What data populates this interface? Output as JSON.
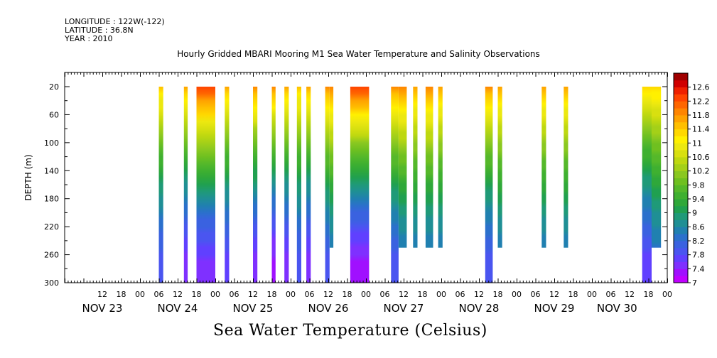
{
  "header": {
    "longitude": "LONGITUDE : 122W(-122)",
    "latitude": "LATITUDE : 36.8N",
    "year": "YEAR : 2010"
  },
  "chart_data": {
    "type": "heatmap",
    "title": "Hourly Gridded MBARI Mooring M1 Sea Water Temperature and Salinity Observations",
    "variable_title": "Sea Water Temperature (Celsius)",
    "ylabel": "DEPTH (m)",
    "y_reversed": true,
    "ylim": [
      300,
      20
    ],
    "y_ticks": [
      20,
      60,
      100,
      140,
      180,
      220,
      260,
      300
    ],
    "x_range_hours": [
      0,
      192
    ],
    "hour_tick_labels": [
      {
        "h": 12,
        "t": "12"
      },
      {
        "h": 18,
        "t": "18"
      },
      {
        "h": 24,
        "t": "00"
      },
      {
        "h": 30,
        "t": "06"
      },
      {
        "h": 36,
        "t": "12"
      },
      {
        "h": 42,
        "t": "18"
      },
      {
        "h": 48,
        "t": "00"
      },
      {
        "h": 54,
        "t": "06"
      },
      {
        "h": 60,
        "t": "12"
      },
      {
        "h": 66,
        "t": "18"
      },
      {
        "h": 72,
        "t": "00"
      },
      {
        "h": 78,
        "t": "06"
      },
      {
        "h": 84,
        "t": "12"
      },
      {
        "h": 90,
        "t": "18"
      },
      {
        "h": 96,
        "t": "00"
      },
      {
        "h": 102,
        "t": "06"
      },
      {
        "h": 108,
        "t": "12"
      },
      {
        "h": 114,
        "t": "18"
      },
      {
        "h": 120,
        "t": "00"
      },
      {
        "h": 126,
        "t": "06"
      },
      {
        "h": 132,
        "t": "12"
      },
      {
        "h": 138,
        "t": "18"
      },
      {
        "h": 144,
        "t": "00"
      },
      {
        "h": 150,
        "t": "06"
      },
      {
        "h": 156,
        "t": "12"
      },
      {
        "h": 162,
        "t": "18"
      },
      {
        "h": 168,
        "t": "00"
      },
      {
        "h": 174,
        "t": "06"
      },
      {
        "h": 180,
        "t": "12"
      },
      {
        "h": 186,
        "t": "18"
      },
      {
        "h": 192,
        "t": "00"
      },
      {
        "h": 198,
        "t": "06"
      }
    ],
    "day_labels": [
      {
        "h": 12,
        "t": "NOV 23"
      },
      {
        "h": 36,
        "t": "NOV 24"
      },
      {
        "h": 60,
        "t": "NOV 25"
      },
      {
        "h": 84,
        "t": "NOV 26"
      },
      {
        "h": 108,
        "t": "NOV 27"
      },
      {
        "h": 132,
        "t": "NOV 28"
      },
      {
        "h": 156,
        "t": "NOV 29"
      },
      {
        "h": 176,
        "t": "NOV 30"
      }
    ],
    "colorbar_levels": [
      7,
      7.2,
      7.4,
      7.6,
      7.8,
      8,
      8.2,
      8.4,
      8.6,
      8.8,
      9,
      9.2,
      9.4,
      9.6,
      9.8,
      10,
      10.2,
      10.4,
      10.6,
      10.8,
      11,
      11.2,
      11.4,
      11.6,
      11.8,
      12,
      12.2,
      12.4,
      12.6,
      12.8
    ],
    "colorbar_labels": [
      "7",
      "7.4",
      "7.8",
      "8.2",
      "8.6",
      "9",
      "9.4",
      "9.8",
      "10.2",
      "10.6",
      "11",
      "11.4",
      "11.8",
      "12.2",
      "12.6"
    ],
    "colorbar_colors": [
      "#c000ff",
      "#a010ff",
      "#7f30ff",
      "#6040ff",
      "#4a55f0",
      "#3a62e0",
      "#2b70cc",
      "#2080b0",
      "#1f8f95",
      "#1f9a78",
      "#20a050",
      "#2fa83a",
      "#3fb030",
      "#55b82a",
      "#6fc020",
      "#8ac820",
      "#a4d018",
      "#bed810",
      "#d8e010",
      "#ece810",
      "#fff000",
      "#ffd800",
      "#ffbf00",
      "#ffa200",
      "#ff8500",
      "#ff6600",
      "#ff4400",
      "#ef2000",
      "#d00000",
      "#a00000"
    ],
    "columns": [
      {
        "x0": 30.0,
        "x1": 31.4,
        "ymax": 300,
        "t_surf": 11.4,
        "t_bot": 7.8
      },
      {
        "x0": 38.0,
        "x1": 39.2,
        "ymax": 300,
        "t_surf": 11.6,
        "t_bot": 7.4
      },
      {
        "x0": 42.0,
        "x1": 48.0,
        "ymax": 300,
        "t_surf": 12.3,
        "t_bot": 7.4
      },
      {
        "x0": 51.0,
        "x1": 52.4,
        "ymax": 300,
        "t_surf": 11.6,
        "t_bot": 7.6
      },
      {
        "x0": 60.0,
        "x1": 61.4,
        "ymax": 300,
        "t_surf": 11.8,
        "t_bot": 7.4
      },
      {
        "x0": 66.0,
        "x1": 67.2,
        "ymax": 300,
        "t_surf": 11.8,
        "t_bot": 7.2
      },
      {
        "x0": 70.0,
        "x1": 71.4,
        "ymax": 300,
        "t_surf": 11.6,
        "t_bot": 7.4
      },
      {
        "x0": 74.0,
        "x1": 75.4,
        "ymax": 300,
        "t_surf": 11.4,
        "t_bot": 7.8
      },
      {
        "x0": 77.0,
        "x1": 78.4,
        "ymax": 300,
        "t_surf": 11.6,
        "t_bot": 7.4
      },
      {
        "x0": 83.0,
        "x1": 84.4,
        "ymax": 300,
        "t_surf": 11.8,
        "t_bot": 7.8
      },
      {
        "x0": 84.4,
        "x1": 85.6,
        "ymax": 250,
        "t_surf": 11.8,
        "t_bot": 8.2
      },
      {
        "x0": 91.0,
        "x1": 97.0,
        "ymax": 300,
        "t_surf": 12.3,
        "t_bot": 7.2
      },
      {
        "x0": 104.0,
        "x1": 106.4,
        "ymax": 300,
        "t_surf": 11.8,
        "t_bot": 7.8
      },
      {
        "x0": 106.4,
        "x1": 109.0,
        "ymax": 250,
        "t_surf": 11.8,
        "t_bot": 8.2
      },
      {
        "x0": 111.0,
        "x1": 112.4,
        "ymax": 250,
        "t_surf": 11.6,
        "t_bot": 8.2
      },
      {
        "x0": 115.0,
        "x1": 117.4,
        "ymax": 250,
        "t_surf": 11.8,
        "t_bot": 8.2
      },
      {
        "x0": 119.0,
        "x1": 120.4,
        "ymax": 250,
        "t_surf": 11.6,
        "t_bot": 8.2
      },
      {
        "x0": 134.0,
        "x1": 136.4,
        "ymax": 300,
        "t_surf": 11.8,
        "t_bot": 7.8
      },
      {
        "x0": 138.0,
        "x1": 139.4,
        "ymax": 250,
        "t_surf": 11.6,
        "t_bot": 8.2
      },
      {
        "x0": 152.0,
        "x1": 153.4,
        "ymax": 250,
        "t_surf": 11.6,
        "t_bot": 8.2
      },
      {
        "x0": 159.0,
        "x1": 160.4,
        "ymax": 250,
        "t_surf": 11.6,
        "t_bot": 8.2
      },
      {
        "x0": 184.0,
        "x1": 187.0,
        "ymax": 300,
        "t_surf": 11.3,
        "t_bot": 7.6
      },
      {
        "x0": 187.0,
        "x1": 190.0,
        "ymax": 250,
        "t_surf": 11.3,
        "t_bot": 8.2
      }
    ]
  }
}
